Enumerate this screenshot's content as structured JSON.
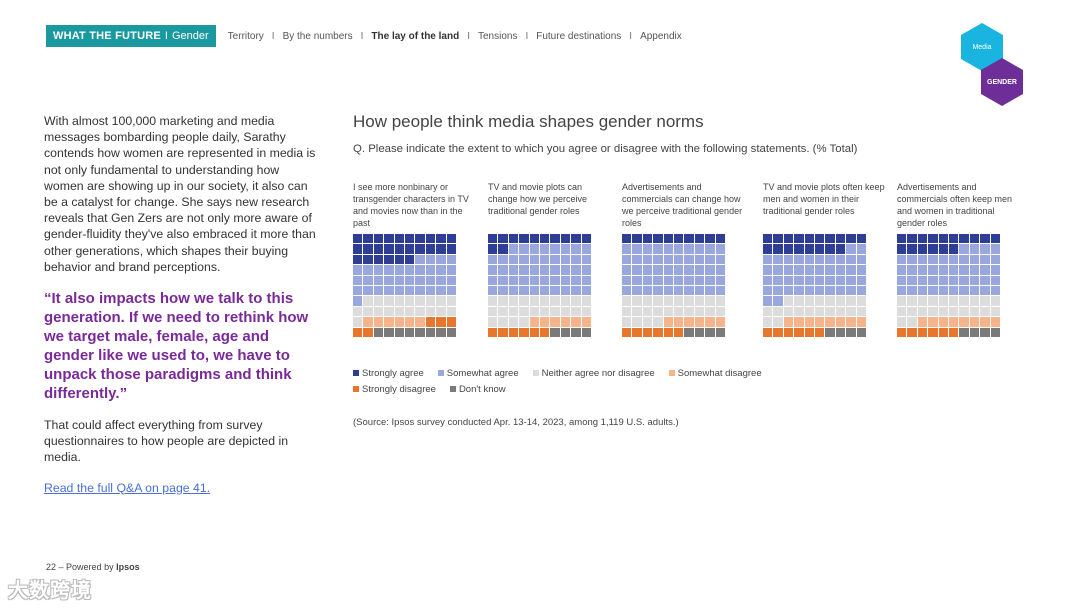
{
  "header": {
    "brand_title": "WHAT THE FUTURE",
    "brand_separator": "I",
    "brand_topic": "Gender",
    "nav_items": [
      {
        "label": "Territory",
        "active": false
      },
      {
        "label": "By the numbers",
        "active": false
      },
      {
        "label": "The lay of the land",
        "active": true
      },
      {
        "label": "Tensions",
        "active": false
      },
      {
        "label": "Future destinations",
        "active": false
      },
      {
        "label": "Appendix",
        "active": false
      }
    ],
    "nav_divider": "I"
  },
  "badges": {
    "media": "Media",
    "gender": "GENDER",
    "media_color": "#19b5e0",
    "gender_color": "#6d2f97"
  },
  "left_column": {
    "intro": "With almost 100,000 marketing and media messages bombarding people daily, Sarathy contends how women are represented in media is not only fundamental to understanding how women are showing up in our society, it also can be a catalyst for change. She says new research reveals that Gen Zers are not only more aware of gender-fluidity they've also embraced it more than other generations, which shapes their buying behavior and brand perceptions.",
    "quote": "“It also impacts how we talk to this generation. If we need to rethink how we target male, female, age and gender like we used to, we have to unpack those paradigms and think differently.”",
    "after": "That could affect everything from survey questionnaires to how people are depicted in media.",
    "link": "Read the full Q&A on page 41."
  },
  "chart_data": {
    "type": "waffle",
    "title": "How people think media shapes gender norms",
    "subtitle": "Q. Please indicate the extent to which you agree or disagree with the following statements. (% Total)",
    "categories": [
      "Strongly agree",
      "Somewhat agree",
      "Neither agree nor disagree",
      "Somewhat disagree",
      "Strongly disagree",
      "Don't know"
    ],
    "colors": [
      "#2e3e94",
      "#9aa7dc",
      "#dcdcdc",
      "#f5b48c",
      "#e8772e",
      "#7a7a7a"
    ],
    "panels": [
      {
        "label": "I see more nonbinary or transgender characters in TV and movies now than in the past",
        "values": [
          26,
          35,
          20,
          6,
          5,
          8
        ]
      },
      {
        "label": "TV and movie plots can change how we perceive traditional gender roles",
        "values": [
          12,
          48,
          24,
          6,
          6,
          4
        ]
      },
      {
        "label": "Advertisements and commercials can change how we perceive traditional gender roles",
        "values": [
          10,
          50,
          24,
          6,
          6,
          4
        ]
      },
      {
        "label": "TV and movie plots often keep men and women in their traditional gender roles",
        "values": [
          18,
          44,
          20,
          8,
          6,
          4
        ]
      },
      {
        "label": "Advertisements and commercials often keep men and women in traditional gender roles",
        "values": [
          16,
          44,
          22,
          8,
          6,
          4
        ]
      }
    ],
    "source": "(Source: Ipsos survey conducted Apr. 13-14, 2023, among 1,119 U.S. adults.)"
  },
  "footer": {
    "page": "22 –",
    "powered_by": "Powered by",
    "company": "Ipsos"
  },
  "watermark": {
    "text": "大数跨境"
  }
}
